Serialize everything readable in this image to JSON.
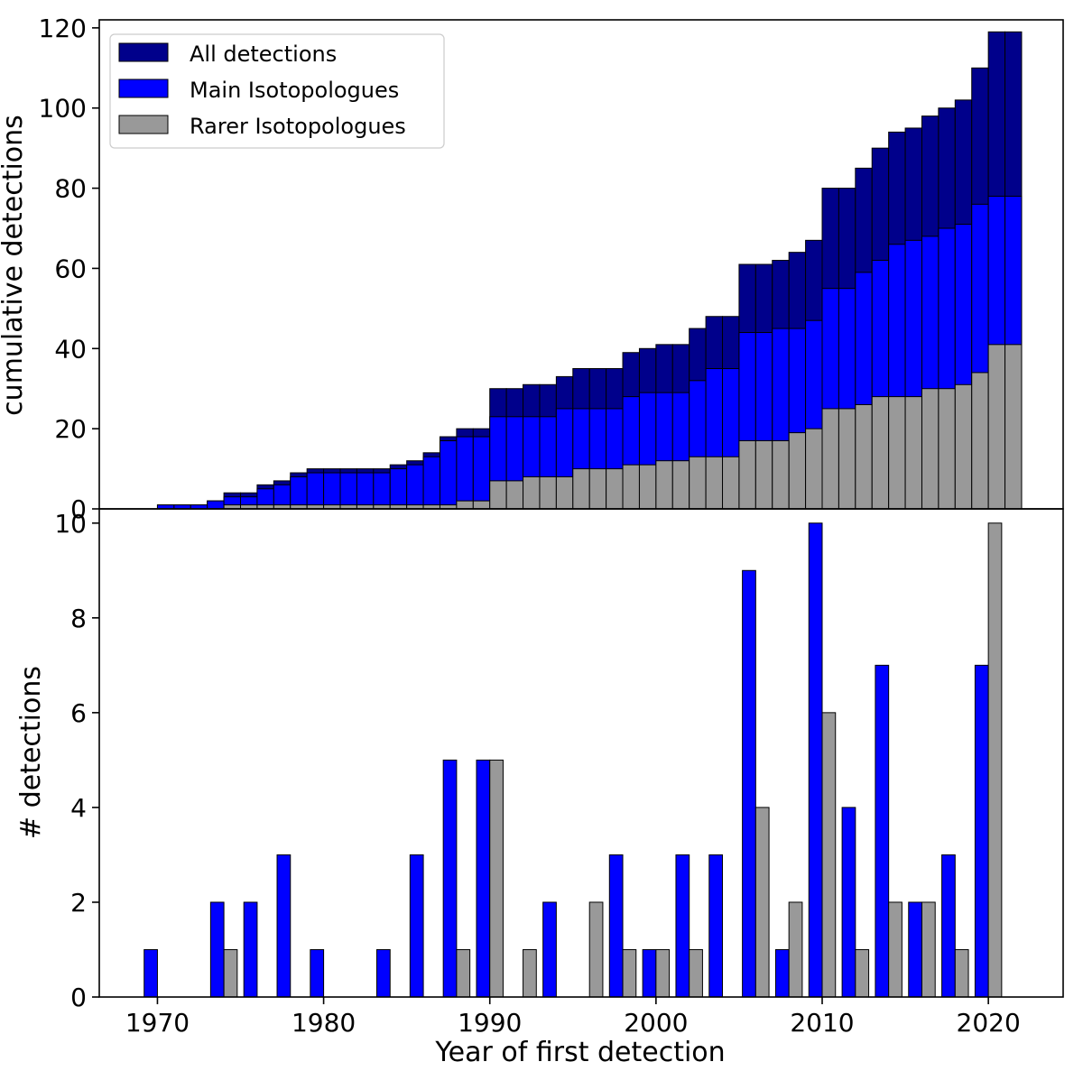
{
  "colors": {
    "all": "#00008B",
    "main": "#0000FF",
    "rare": "#999999",
    "edge": "#000000"
  },
  "chart_data": [
    {
      "type": "bar",
      "stacked_overlay": true,
      "title": "",
      "xlabel": "",
      "ylabel": "cumulative detections",
      "xlim": [
        1966.5,
        2024.5
      ],
      "ylim": [
        0,
        122
      ],
      "yticks": [
        0,
        20,
        40,
        60,
        80,
        100,
        120
      ],
      "legend_position": "top-left",
      "x": [
        1965,
        1966,
        1967,
        1968,
        1969,
        1970,
        1971,
        1972,
        1973,
        1974,
        1975,
        1976,
        1977,
        1978,
        1979,
        1980,
        1981,
        1982,
        1983,
        1984,
        1985,
        1986,
        1987,
        1988,
        1989,
        1990,
        1991,
        1992,
        1993,
        1994,
        1995,
        1996,
        1997,
        1998,
        1999,
        2000,
        2001,
        2002,
        2003,
        2004,
        2005,
        2006,
        2007,
        2008,
        2009,
        2010,
        2011,
        2012,
        2013,
        2014,
        2015,
        2016,
        2017,
        2018,
        2019,
        2020,
        2021
      ],
      "series": [
        {
          "name": "All detections",
          "color_key": "all",
          "values": [
            0,
            0,
            0,
            0,
            0,
            1,
            1,
            1,
            2,
            4,
            4,
            6,
            7,
            9,
            10,
            10,
            10,
            10,
            10,
            11,
            12,
            14,
            18,
            20,
            20,
            30,
            30,
            31,
            31,
            33,
            35,
            35,
            35,
            39,
            40,
            41,
            41,
            45,
            48,
            48,
            61,
            61,
            62,
            64,
            67,
            80,
            80,
            85,
            90,
            94,
            95,
            98,
            100,
            102,
            110,
            119,
            119
          ]
        },
        {
          "name": "Main Isotopologues",
          "color_key": "main",
          "values": [
            0,
            0,
            0,
            0,
            0,
            1,
            1,
            1,
            2,
            3,
            3,
            5,
            6,
            8,
            9,
            9,
            9,
            9,
            9,
            10,
            11,
            13,
            17,
            18,
            18,
            23,
            23,
            23,
            23,
            25,
            25,
            25,
            25,
            28,
            29,
            29,
            29,
            32,
            35,
            35,
            44,
            44,
            45,
            45,
            47,
            55,
            55,
            59,
            62,
            66,
            67,
            68,
            70,
            71,
            76,
            78,
            78
          ]
        },
        {
          "name": "Rarer Isotopologues",
          "color_key": "rare",
          "values": [
            0,
            0,
            0,
            0,
            0,
            0,
            0,
            0,
            0,
            1,
            1,
            1,
            1,
            1,
            1,
            1,
            1,
            1,
            1,
            1,
            1,
            1,
            1,
            2,
            2,
            7,
            7,
            8,
            8,
            8,
            10,
            10,
            10,
            11,
            11,
            12,
            12,
            13,
            13,
            13,
            17,
            17,
            17,
            19,
            20,
            25,
            25,
            26,
            28,
            28,
            28,
            30,
            30,
            31,
            34,
            41,
            41
          ]
        }
      ]
    },
    {
      "type": "bar",
      "grouped": true,
      "title": "",
      "xlabel": "Year of first detection",
      "ylabel": "# detections",
      "xlim": [
        1966.5,
        2024.5
      ],
      "ylim": [
        0,
        10.3
      ],
      "xticks": [
        1970,
        1980,
        1990,
        2000,
        2010,
        2020
      ],
      "yticks": [
        0,
        2,
        4,
        6,
        8,
        10
      ],
      "bin_centers": [
        1970,
        1972,
        1974,
        1976,
        1978,
        1980,
        1982,
        1984,
        1986,
        1988,
        1990,
        1992,
        1994,
        1996,
        1998,
        2000,
        2002,
        2004,
        2006,
        2008,
        2010,
        2012,
        2014,
        2016,
        2018,
        2020
      ],
      "series": [
        {
          "name": "Main Isotopologues",
          "color_key": "main",
          "values": [
            1,
            0,
            2,
            2,
            3,
            1,
            0,
            1,
            3,
            5,
            5,
            0,
            2,
            0,
            3,
            1,
            3,
            3,
            9,
            1,
            10,
            4,
            7,
            2,
            3,
            7
          ]
        },
        {
          "name": "Rarer Isotopologues",
          "color_key": "rare",
          "values": [
            0,
            0,
            1,
            0,
            0,
            0,
            0,
            0,
            0,
            1,
            5,
            1,
            0,
            2,
            1,
            1,
            1,
            0,
            4,
            2,
            6,
            1,
            2,
            2,
            1,
            10
          ]
        }
      ]
    }
  ]
}
